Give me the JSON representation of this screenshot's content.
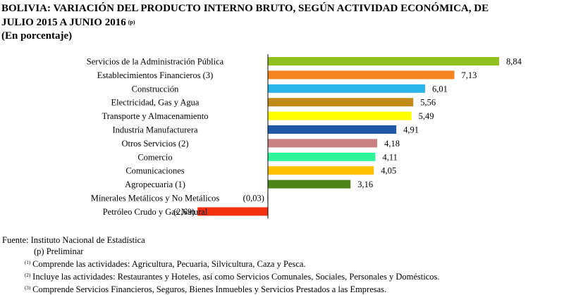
{
  "header": {
    "title_line1": "BOLIVIA: VARIACIÓN DEL PRODUCTO INTERNO BRUTO, SEGÚN ACTIVIDAD ECONÓMICA, DE",
    "title_line2": "JULIO 2015 A JUNIO 2016",
    "title_mark": "(p)",
    "subtitle": "(En porcentaje)"
  },
  "chart_data": {
    "type": "bar",
    "orientation": "horizontal",
    "categories": [
      "Servicios de la Administración Pública",
      "Establecimientos Financieros (3)",
      "Construcción",
      "Electricidad, Gas y Agua",
      "Transporte y Almacenamiento",
      "Industria Manufacturera",
      "Otros Servicios (2)",
      "Comercio",
      "Comunicaciones",
      "Agropecuaria (1)",
      "Minerales Metálicos y No Metálicos",
      "Petróleo Crudo y Gas Natural"
    ],
    "values": [
      8.84,
      7.13,
      6.01,
      5.56,
      5.49,
      4.91,
      4.18,
      4.11,
      4.05,
      3.16,
      -0.03,
      -2.69
    ],
    "value_labels": [
      "8,84",
      "7,13",
      "6,01",
      "5,56",
      "5,49",
      "4,91",
      "4,18",
      "4,11",
      "4,05",
      "3,16",
      "(0,03)",
      "(2,69)"
    ],
    "colors": [
      "#92c020",
      "#f5831f",
      "#2ab4ea",
      "#c28a16",
      "#ffff00",
      "#1f5aa8",
      "#c98080",
      "#2ef59a",
      "#ffc000",
      "#4e8518",
      "#c9c0d8",
      "#f33010"
    ],
    "xlim": [
      -2.69,
      8.84
    ],
    "grid": false,
    "legend": "none"
  },
  "footer": {
    "source": "Fuente: Instituto Nacional de Estadística",
    "preliminary": "(p) Preliminar",
    "notes": [
      {
        "mark": "(1)",
        "text": "Comprende las actividades: Agricultura, Pecuaria, Silvicultura, Caza y Pesca."
      },
      {
        "mark": "(2)",
        "text": "Incluye las actividades: Restaurantes y Hoteles, así como Servicios Comunales, Sociales, Personales y Domésticos."
      },
      {
        "mark": "(3)",
        "text": "Comprende Servicios Financieros, Seguros, Bienes Inmuebles y Servicios Prestados a las Empresas."
      }
    ]
  }
}
